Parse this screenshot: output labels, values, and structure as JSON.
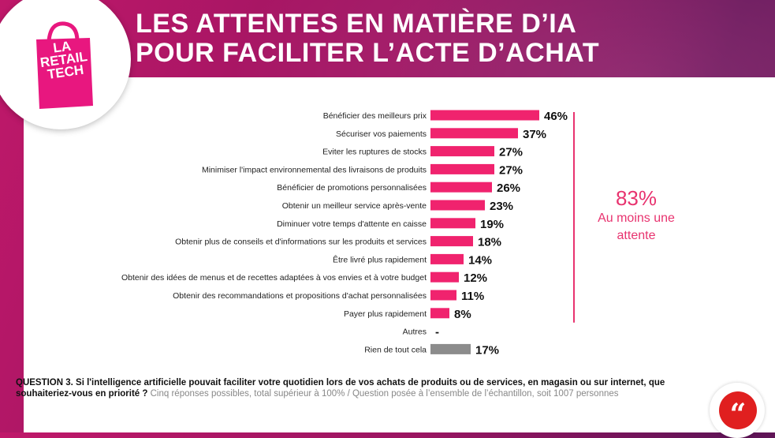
{
  "header": {
    "title": "LES ATTENTES EN MATIÈRE D’IA\nPOUR FACILITER L’ACTE D’ACHAT"
  },
  "logo": {
    "text": "LA\nRETAIL\nTECH",
    "icon": "shopping-bag-icon"
  },
  "colors": {
    "bar": "#f0236e",
    "bar_none": "#8c8c8c",
    "accent": "#e8336f"
  },
  "chart_data": {
    "type": "bar",
    "orientation": "horizontal",
    "categories": [
      "Bénéficier des meilleurs prix",
      "Sécuriser vos paiements",
      "Eviter les ruptures de stocks",
      "Minimiser l'impact environnemental des livraisons de produits",
      "Bénéficier de promotions personnalisées",
      "Obtenir un meilleur service après-vente",
      "Diminuer votre temps d'attente en caisse",
      "Obtenir plus de conseils et d'informations sur les produits et services",
      "Être livré plus rapidement",
      "Obtenir des idées de menus et de recettes adaptées à vos envies et à votre budget",
      "Obtenir des recommandations et propositions d'achat personnalisées",
      "Payer plus rapidement",
      "Autres",
      "Rien de tout cela"
    ],
    "values": [
      46,
      37,
      27,
      27,
      26,
      23,
      19,
      18,
      14,
      12,
      11,
      8,
      null,
      17
    ],
    "labels": [
      "46%",
      "37%",
      "27%",
      "27%",
      "26%",
      "23%",
      "19%",
      "18%",
      "14%",
      "12%",
      "11%",
      "8%",
      "-",
      "17%"
    ],
    "unit": "%",
    "grid": false
  },
  "callout": {
    "percent": "83%",
    "text": "Au moins une\nattente"
  },
  "question": {
    "main": "QUESTION 3. Si l'intelligence artificielle pouvait faciliter votre quotidien lors de vos achats de produits ou de services, en magasin ou sur internet, que souhaiteriez-vous en priorité ?",
    "note": "Cinq réponses possibles, total supérieur à 100% / Question posée à l’ensemble de l’échantillon, soit 1007 personnes"
  },
  "quote_badge": {
    "icon": "quote-icon",
    "glyph": "“"
  }
}
